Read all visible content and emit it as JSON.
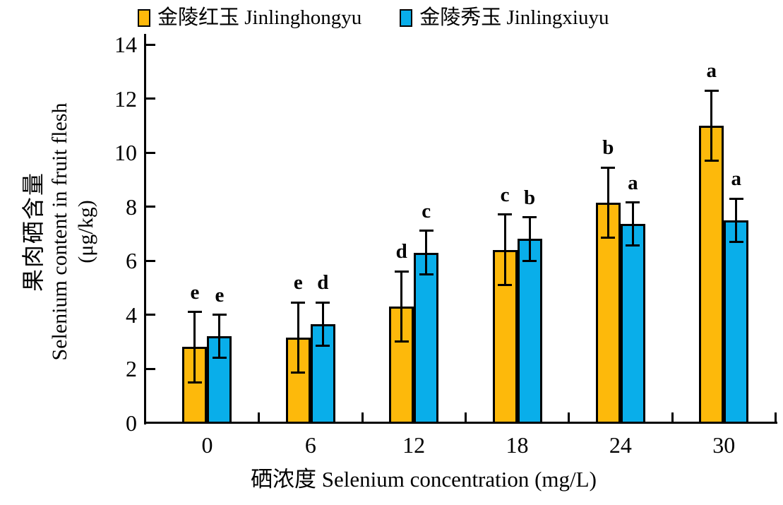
{
  "legend": {
    "items": [
      {
        "label": "金陵红玉 Jinlinghongyu",
        "color": "#FDB90B"
      },
      {
        "label": "金陵秀玉 Jinlingxiuyu",
        "color": "#09AEEA"
      }
    ]
  },
  "chart_data": {
    "type": "bar",
    "title": "",
    "xlabel": "硒浓度 Selenium concentration (mg/L)",
    "ylabel_lines": [
      "果肉硒含量",
      "Selenium content in fruit flesh",
      "(μg/kg)"
    ],
    "ylabel": "果肉硒含量 Selenium content in fruit flesh (μg/kg)",
    "categories": [
      "0",
      "6",
      "12",
      "18",
      "24",
      "30"
    ],
    "ylim": [
      0,
      14
    ],
    "yticks": [
      0,
      2,
      4,
      6,
      8,
      10,
      12,
      14
    ],
    "grid": false,
    "legend_position": "top",
    "error_bars": true,
    "series": [
      {
        "name": "金陵红玉 Jinlinghongyu",
        "color": "#FDB90B",
        "values": [
          2.8,
          3.15,
          4.3,
          6.4,
          8.15,
          11.0
        ],
        "errors": [
          1.3,
          1.3,
          1.3,
          1.3,
          1.3,
          1.3
        ],
        "letters": [
          "e",
          "e",
          "d",
          "c",
          "b",
          "a"
        ]
      },
      {
        "name": "金陵秀玉 Jinlingxiuyu",
        "color": "#09AEEA",
        "values": [
          3.2,
          3.65,
          6.3,
          6.8,
          7.35,
          7.5
        ],
        "errors": [
          0.8,
          0.8,
          0.8,
          0.8,
          0.8,
          0.8
        ],
        "letters": [
          "e",
          "d",
          "c",
          "b",
          "a",
          "a"
        ]
      }
    ]
  }
}
